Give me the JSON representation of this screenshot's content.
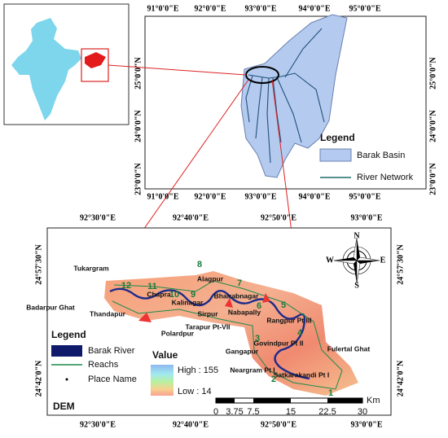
{
  "basin_map": {
    "lon_labels": [
      "91°0'0\"E",
      "92°0'0\"E",
      "93°0'0\"E",
      "94°0'0\"E",
      "95°0'0\"E"
    ],
    "lat_labels": [
      "25°0'0\"N",
      "24°0'0\"N",
      "23°0'0\"N"
    ],
    "legend": {
      "title": "Legend",
      "items": [
        "Barak Basin",
        "River Network"
      ]
    }
  },
  "study_map": {
    "lon_labels": [
      "92°30'0\"E",
      "92°40'0\"E",
      "92°50'0\"E",
      "93°0'0\"E"
    ],
    "lat_labels": [
      "24°57'30\"N",
      "24°42'0\"N"
    ],
    "places": [
      "Tukargram",
      "Chapra",
      "Badarpur Ghat",
      "Thandapur",
      "Kalinagar",
      "Alagpur",
      "Bhairabnagar",
      "Nabapally",
      "Rangpur Pt III",
      "Sirpur",
      "Tarapur Pt-VII",
      "Polardpur",
      "Gangapur",
      "Govindpur Pt II",
      "Fulertal Ghat",
      "Neargram Pt I",
      "Satkarakandi Pt I"
    ],
    "reaches": [
      "12",
      "11",
      "10",
      "9",
      "8",
      "7",
      "6",
      "5",
      "4",
      "3",
      "2",
      "1"
    ],
    "compass": [
      "N",
      "S",
      "E",
      "W"
    ],
    "legend": {
      "title": "Legend",
      "items": [
        "Barak River",
        "Reachs",
        "Place Name"
      ],
      "value_title": "Value",
      "high": "High : 155",
      "low": "Low : 14",
      "layer": "DEM"
    },
    "scale": {
      "labels": [
        "0",
        "3.75",
        "7.5",
        "15",
        "22.5",
        "30"
      ],
      "unit": "Km"
    }
  }
}
